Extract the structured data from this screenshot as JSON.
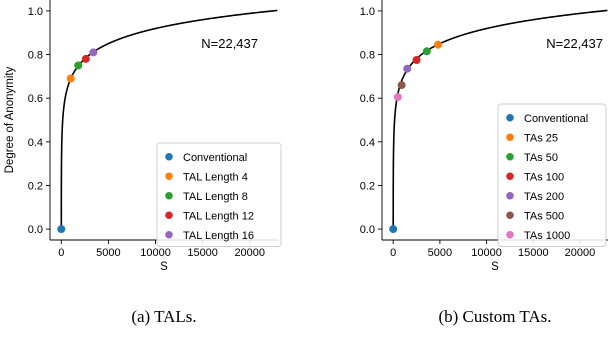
{
  "chart_data": [
    {
      "type": "line",
      "xlabel": "S",
      "ylabel": "Degree of Anonymity",
      "xlim": [
        -1200,
        23000
      ],
      "ylim": [
        -0.05,
        1.05
      ],
      "xticks": [
        0,
        5000,
        10000,
        15000,
        20000
      ],
      "xtick_labels": [
        "0",
        "5000",
        "10000",
        "15000",
        "20000"
      ],
      "yticks": [
        0.0,
        0.2,
        0.4,
        0.6,
        0.8,
        1.0
      ],
      "ytick_labels": [
        "0.0",
        "0.2",
        "0.4",
        "0.6",
        "0.8",
        "1.0"
      ],
      "annotation": "N=22,437",
      "N": 22437,
      "curve_color": "#000000",
      "legend_position": "lower-right",
      "caption": "(a) TALs.",
      "points": [
        {
          "name": "Conventional",
          "x": 0,
          "y": 0.0,
          "color": "#1f77b4"
        },
        {
          "name": "TAL Length 4",
          "x": 1000,
          "y": 0.69,
          "color": "#ff7f0e"
        },
        {
          "name": "TAL Length 8",
          "x": 1800,
          "y": 0.75,
          "color": "#2ca02c"
        },
        {
          "name": "TAL Length 12",
          "x": 2600,
          "y": 0.78,
          "color": "#d62728"
        },
        {
          "name": "TAL Length 16",
          "x": 3400,
          "y": 0.81,
          "color": "#9467bd"
        }
      ]
    },
    {
      "type": "line",
      "xlabel": "S",
      "ylabel": "",
      "xlim": [
        -1200,
        23000
      ],
      "ylim": [
        -0.05,
        1.05
      ],
      "xticks": [
        0,
        5000,
        10000,
        15000,
        20000
      ],
      "xtick_labels": [
        "0",
        "5000",
        "10000",
        "15000",
        "20000"
      ],
      "yticks": [
        0.0,
        0.2,
        0.4,
        0.6,
        0.8,
        1.0
      ],
      "ytick_labels": [
        "0.0",
        "0.2",
        "0.4",
        "0.6",
        "0.8",
        "1.0"
      ],
      "annotation": "N=22,437",
      "N": 22437,
      "curve_color": "#000000",
      "legend_position": "lower-right",
      "caption": "(b) Custom TAs.",
      "points": [
        {
          "name": "Conventional",
          "x": 0,
          "y": 0.0,
          "color": "#1f77b4"
        },
        {
          "name": "TAs 25",
          "x": 4800,
          "y": 0.845,
          "color": "#ff7f0e"
        },
        {
          "name": "TAs 50",
          "x": 3600,
          "y": 0.815,
          "color": "#2ca02c"
        },
        {
          "name": "TAs 100",
          "x": 2500,
          "y": 0.775,
          "color": "#d62728"
        },
        {
          "name": "TAs 200",
          "x": 1500,
          "y": 0.735,
          "color": "#9467bd"
        },
        {
          "name": "TAs 500",
          "x": 900,
          "y": 0.66,
          "color": "#8c564b"
        },
        {
          "name": "TAs 1000",
          "x": 500,
          "y": 0.605,
          "color": "#e377c2"
        }
      ]
    }
  ]
}
